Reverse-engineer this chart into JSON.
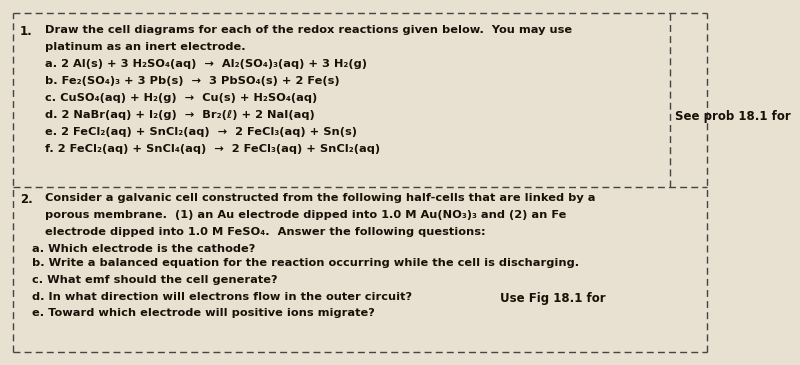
{
  "background_color": "#e8e0d0",
  "border_color": "#444444",
  "section1_number": "1.",
  "section1_title": "Draw the cell diagrams for each of the redox reactions given below.  You may use",
  "section1_title2": "platinum as an inert electrode.",
  "section1_items": [
    "a. 2 Al(s) + 3 H₂SO₄(aq)  →  Al₂(SO₄)₃(aq) + 3 H₂(g)",
    "b. Fe₂(SO₄)₃ + 3 Pb(s)  →  3 PbSO₄(s) + 2 Fe(s)",
    "c. CuSO₄(aq) + H₂(g)  →  Cu(s) + H₂SO₄(aq)",
    "d. 2 NaBr(aq) + I₂(g)  →  Br₂(ℓ) + 2 NaI(aq)",
    "e. 2 FeCl₂(aq) + SnCl₂(aq)  →  2 FeCl₃(aq) + Sn(s)",
    "f. 2 FeCl₂(aq) + SnCl₄(aq)  →  2 FeCl₃(aq) + SnCl₂(aq)"
  ],
  "see_prob_text": "See prob 18.1 for",
  "section2_number": "2.",
  "section2_lines": [
    "Consider a galvanic cell constructed from the following half-cells that are linked by a",
    "porous membrane.  (1) an Au electrode dipped into 1.0 M Au(NO₃)₃ and (2) an Fe",
    "electrode dipped into 1.0 M FeSO₄.  Answer the following questions:"
  ],
  "section2_items": [
    "a. Which electrode is the cathode?",
    "b. Write a balanced equation for the reaction occurring while the cell is discharging.",
    "c. What emf should the cell generate?",
    "d. In what direction will electrons flow in the outer circuit?",
    "e. Toward which electrode will positive ions migrate?"
  ],
  "use_fig_text": "Use Fig 18.1 for",
  "font_size_main": 8.2,
  "font_size_number": 8.5,
  "text_color": "#1a1008"
}
